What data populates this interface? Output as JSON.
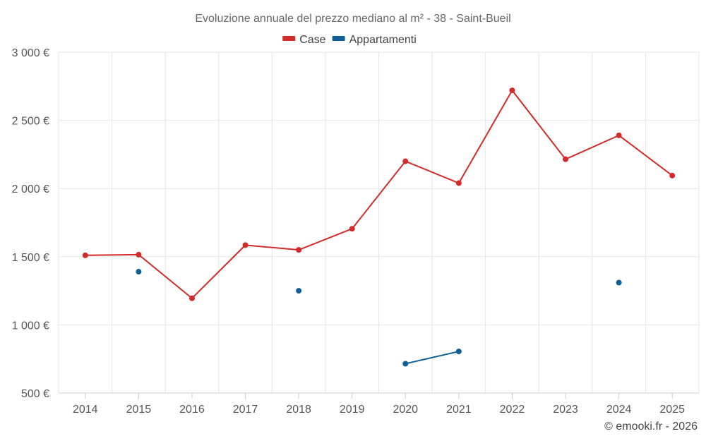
{
  "chart_data": {
    "type": "line",
    "title": "Evoluzione annuale del prezzo mediano al m² - 38 - Saint-Bueil",
    "categories": [
      "2014",
      "2015",
      "2016",
      "2017",
      "2018",
      "2019",
      "2020",
      "2021",
      "2022",
      "2023",
      "2024",
      "2025"
    ],
    "series": [
      {
        "name": "Case",
        "color": "#d32a2a",
        "values": [
          1510,
          1515,
          1195,
          1585,
          1550,
          1705,
          2200,
          2040,
          2720,
          2215,
          2390,
          2095
        ]
      },
      {
        "name": "Appartamenti",
        "color": "#0e5f93",
        "values": [
          null,
          1390,
          null,
          null,
          1250,
          null,
          715,
          805,
          null,
          null,
          1310,
          null
        ]
      }
    ],
    "ylim": [
      500,
      3000
    ],
    "yticks": [
      500,
      1000,
      1500,
      2000,
      2500,
      3000
    ],
    "ytick_labels": [
      "500 €",
      "1 000 €",
      "1 500 €",
      "2 000 €",
      "2 500 €",
      "3 000 €"
    ],
    "xlabel": "",
    "ylabel": "",
    "grid": true,
    "legend_position": "top-center"
  },
  "credit": "© emooki.fr - 2026"
}
